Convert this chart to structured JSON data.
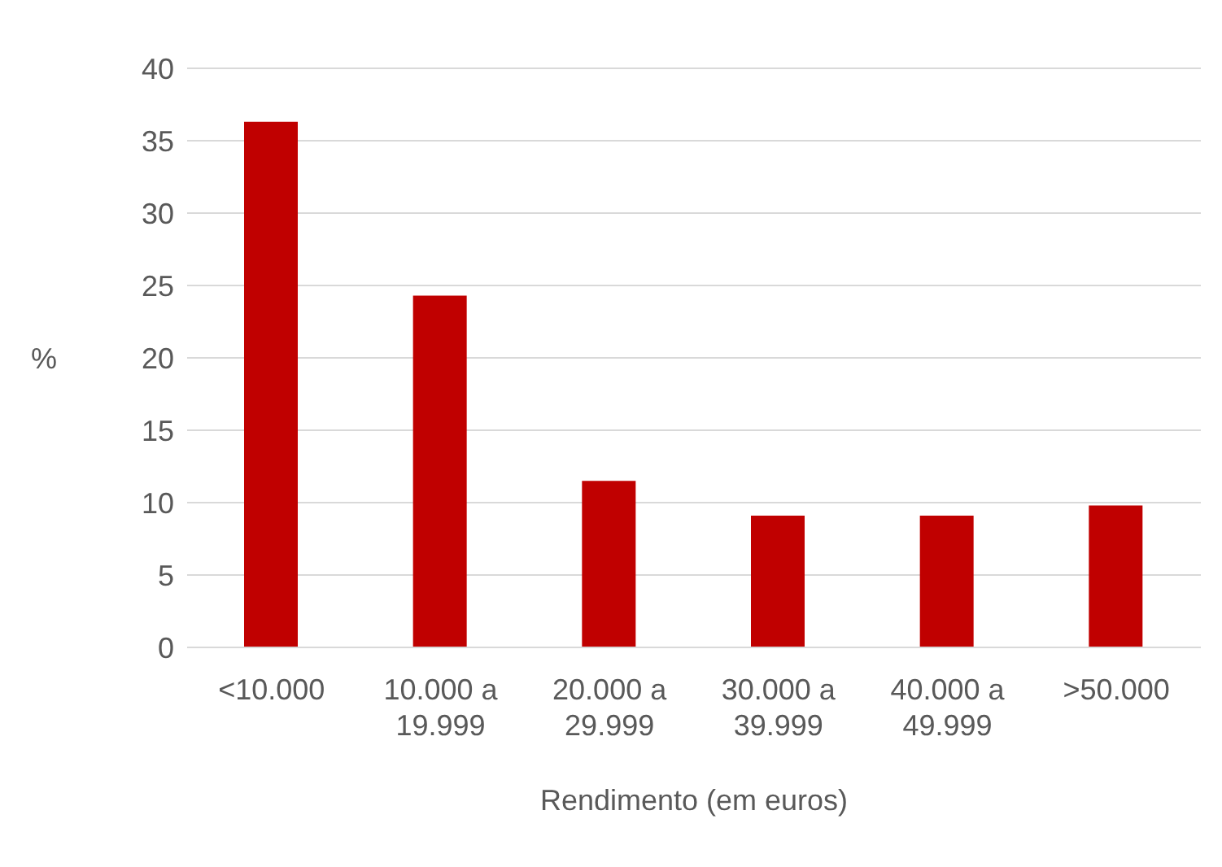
{
  "chart_data": {
    "type": "bar",
    "xlabel": "Rendimento (em euros)",
    "ylabel": "%",
    "categories": [
      "<10.000",
      "10.000 a 19.999",
      "20.000 a 29.999",
      "30.000 a 39.999",
      "40.000 a 49.999",
      ">50.000"
    ],
    "values": [
      36.3,
      24.3,
      11.5,
      9.1,
      9.1,
      9.8
    ],
    "color": "#c00000",
    "ylim": [
      0,
      40
    ],
    "yticks": [
      0,
      5,
      10,
      15,
      20,
      25,
      30,
      35,
      40
    ],
    "grid": "y",
    "legend": false
  }
}
